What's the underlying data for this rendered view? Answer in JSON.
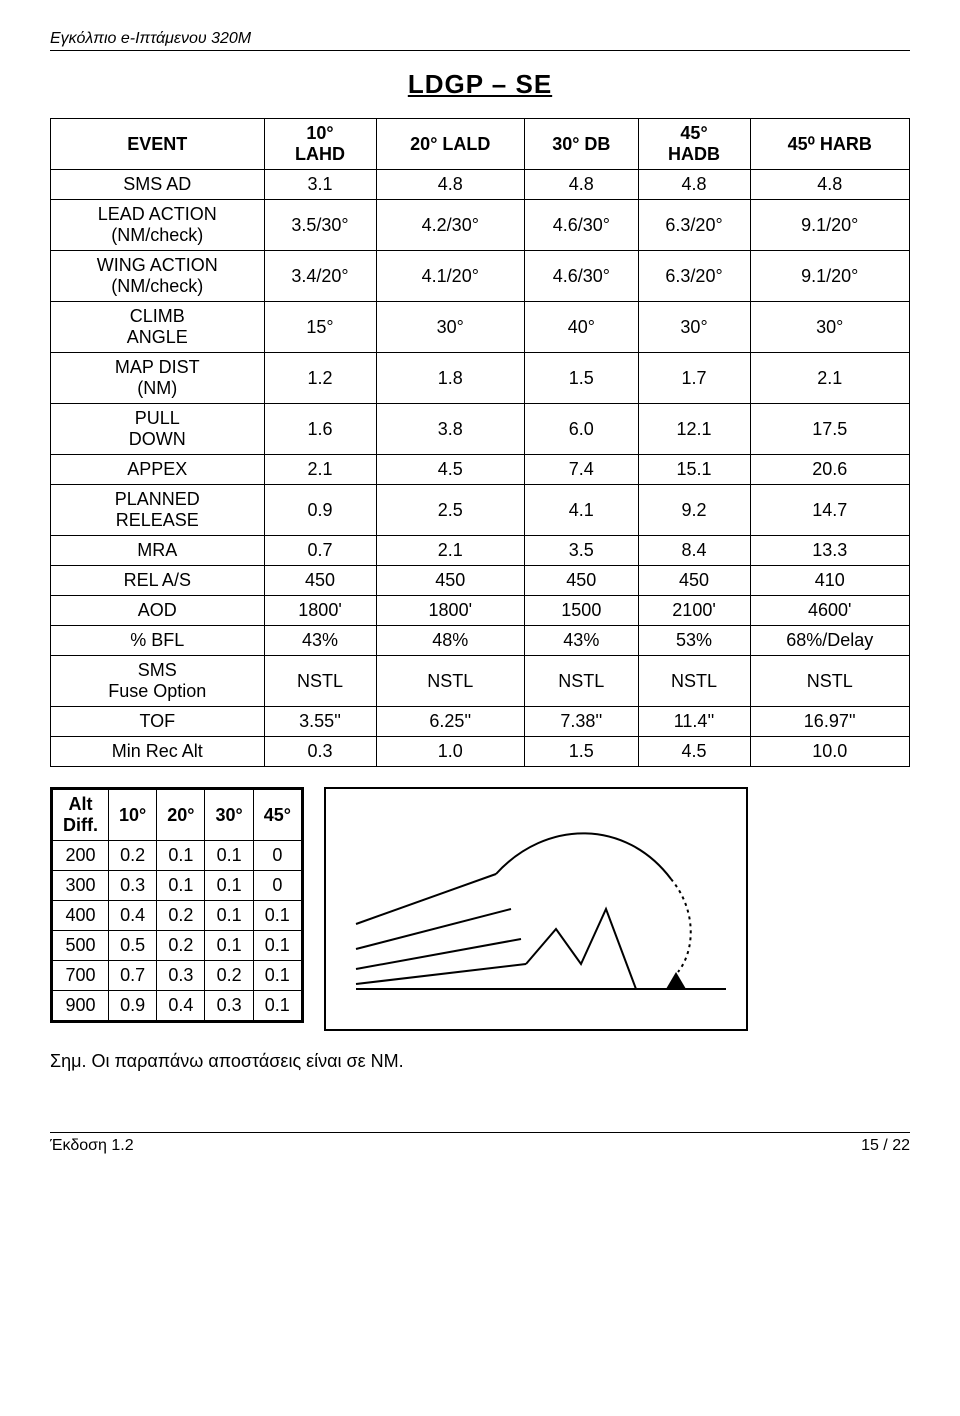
{
  "header": "Εγκόλπιο e-Ιπτάμενου 320Μ",
  "title": "LDGP – SE",
  "main": {
    "columns": [
      "EVENT",
      "10° LAHD",
      "20° LALD",
      "30° DB",
      "45° HADB",
      "45⁰ HARB"
    ],
    "rows": [
      [
        "SMS AD",
        "3.1",
        "4.8",
        "4.8",
        "4.8",
        "4.8"
      ],
      [
        "LEAD ACTION (NM/check)",
        "3.5/30°",
        "4.2/30°",
        "4.6/30°",
        "6.3/20°",
        "9.1/20°"
      ],
      [
        "WING ACTION (NM/check)",
        "3.4/20°",
        "4.1/20°",
        "4.6/30°",
        "6.3/20°",
        "9.1/20°"
      ],
      [
        "CLIMB ANGLE",
        "15°",
        "30°",
        "40°",
        "30°",
        "30°"
      ],
      [
        "MAP DIST (NM)",
        "1.2",
        "1.8",
        "1.5",
        "1.7",
        "2.1"
      ],
      [
        "PULL DOWN",
        "1.6",
        "3.8",
        "6.0",
        "12.1",
        "17.5"
      ],
      [
        "APPEX",
        "2.1",
        "4.5",
        "7.4",
        "15.1",
        "20.6"
      ],
      [
        "PLANNED RELEASE",
        "0.9",
        "2.5",
        "4.1",
        "9.2",
        "14.7"
      ],
      [
        "MRA",
        "0.7",
        "2.1",
        "3.5",
        "8.4",
        "13.3"
      ],
      [
        "REL A/S",
        "450",
        "450",
        "450",
        "450",
        "410"
      ],
      [
        "AOD",
        "1800'",
        "1800'",
        "1500",
        "2100'",
        "4600'"
      ],
      [
        "% BFL",
        "43%",
        "48%",
        "43%",
        "53%",
        "68%/Delay"
      ],
      [
        "SMS Fuse Option",
        "NSTL",
        "NSTL",
        "NSTL",
        "NSTL",
        "NSTL"
      ],
      [
        "TOF",
        "3.55''",
        "6.25''",
        "7.38''",
        "11.4''",
        "16.97''"
      ],
      [
        "Min Rec Alt",
        "0.3",
        "1.0",
        "1.5",
        "4.5",
        "10.0"
      ]
    ]
  },
  "small": {
    "columns": [
      "Alt Diff.",
      "10°",
      "20°",
      "30°",
      "45°"
    ],
    "rows": [
      [
        "200",
        "0.2",
        "0.1",
        "0.1",
        "0"
      ],
      [
        "300",
        "0.3",
        "0.1",
        "0.1",
        "0"
      ],
      [
        "400",
        "0.4",
        "0.2",
        "0.1",
        "0.1"
      ],
      [
        "500",
        "0.5",
        "0.2",
        "0.1",
        "0.1"
      ],
      [
        "700",
        "0.7",
        "0.3",
        "0.2",
        "0.1"
      ],
      [
        "900",
        "0.9",
        "0.4",
        "0.3",
        "0.1"
      ]
    ]
  },
  "note": "Σημ. Οι παραπάνω αποστάσεις είναι σε NM.",
  "footer": {
    "left": "Έκδοση 1.2",
    "right": "15 / 22"
  }
}
